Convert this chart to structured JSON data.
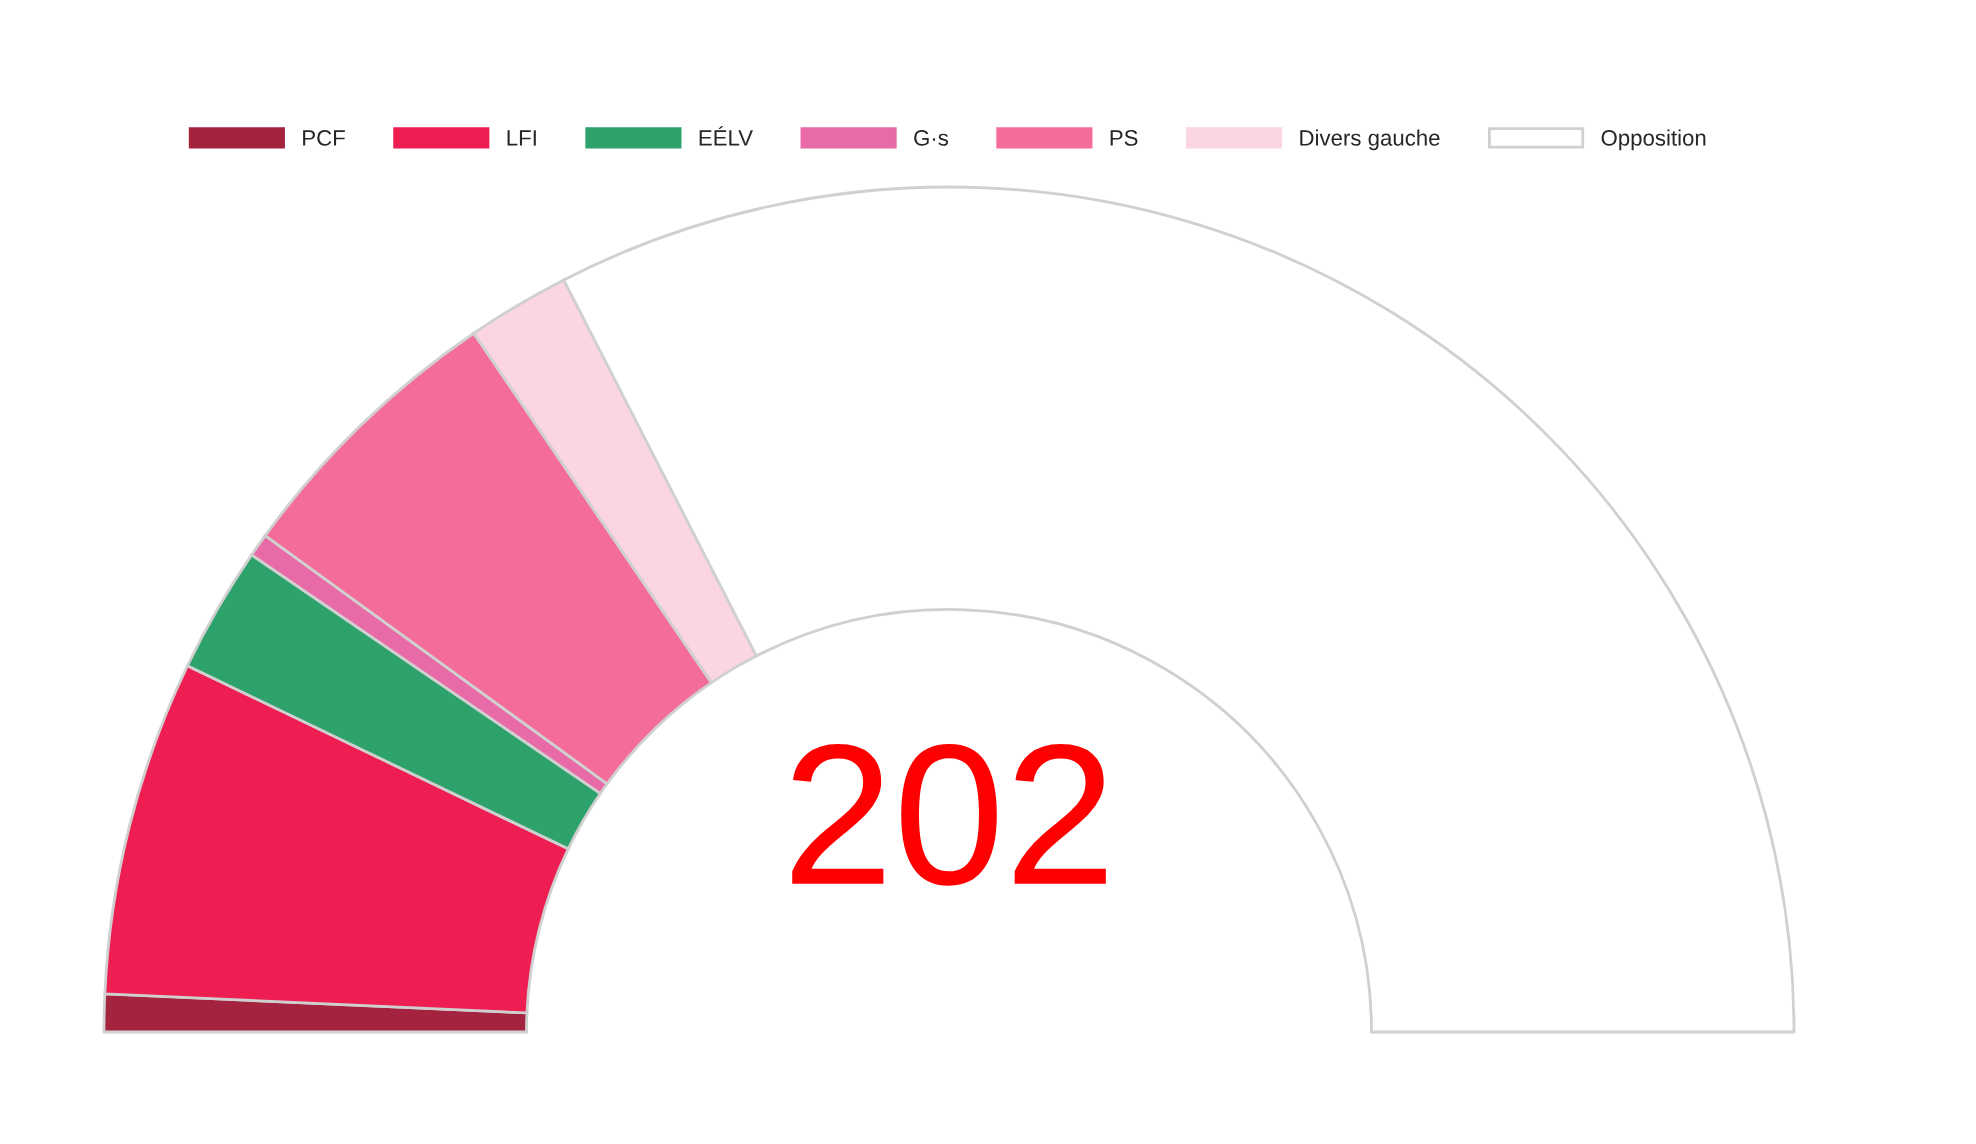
{
  "chart_data": {
    "type": "donut",
    "categories": [
      "PCF",
      "LFI",
      "EÉLV",
      "G·s",
      "PS",
      "Divers gauche",
      "Opposition"
    ],
    "values": [
      1.44,
      12.83,
      4.83,
      0.89,
      11.0,
      3.94,
      65.07
    ],
    "colors": [
      "#a4243f",
      "#ee1d52",
      "#2ea26b",
      "#e86aa6",
      "#f46d9a",
      "#fbd5e0",
      "#ffffff"
    ],
    "annotations": [
      "202"
    ],
    "legend": "top"
  }
}
